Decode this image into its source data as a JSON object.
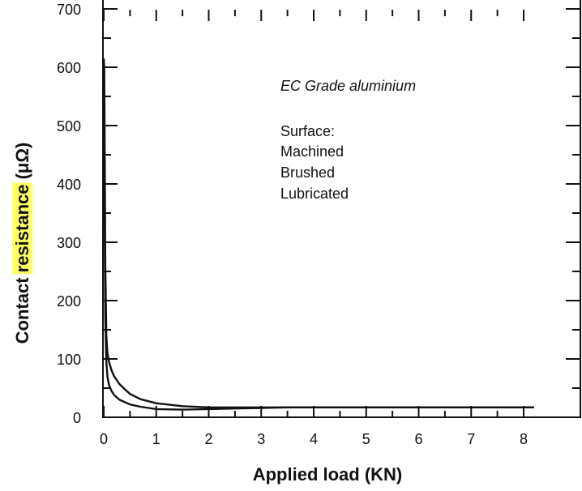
{
  "chart_data": {
    "type": "line",
    "title": "",
    "xlabel": "Applied load (KN)",
    "ylabel_prefix": "Contact ",
    "ylabel_highlight": "resistance",
    "ylabel_suffix": " (μΩ)",
    "highlight_color": "#ffff66",
    "xlim": [
      0,
      8.8
    ],
    "ylim": [
      0,
      700
    ],
    "x_ticks": [
      "0",
      "1",
      "2",
      "3",
      "4",
      "5",
      "6",
      "7",
      "8"
    ],
    "y_ticks": [
      "0",
      "100",
      "200",
      "300",
      "400",
      "500",
      "600",
      "700"
    ],
    "annotation": {
      "heading": "EC Grade aluminium",
      "lines": [
        "Surface:",
        "Machined",
        "Brushed",
        "Lubricated"
      ]
    },
    "series": [
      {
        "x": [
          0.0,
          0.01,
          0.02,
          0.03,
          0.05,
          0.07,
          0.1,
          0.15,
          0.2,
          0.3,
          0.4,
          0.5,
          0.7,
          1.0,
          1.5,
          2.0,
          2.5,
          3.0,
          4.0,
          5.0,
          6.0,
          7.0,
          8.2
        ],
        "values": [
          615,
          600,
          430,
          260,
          140,
          110,
          95,
          80,
          70,
          57,
          48,
          40,
          31,
          24,
          19,
          17,
          17,
          17,
          17,
          17,
          17,
          17,
          17
        ]
      },
      {
        "x": [
          0.0,
          0.01,
          0.02,
          0.03,
          0.05,
          0.07,
          0.1,
          0.15,
          0.2,
          0.3,
          0.5,
          0.7,
          1.0,
          1.5,
          2.0,
          2.5,
          3.0,
          3.5,
          4.0,
          5.0,
          6.0,
          7.0,
          8.2
        ],
        "values": [
          560,
          500,
          300,
          170,
          95,
          70,
          55,
          45,
          38,
          30,
          22,
          18,
          14,
          13,
          14,
          15,
          16,
          17,
          17,
          17,
          17,
          17,
          17
        ]
      }
    ],
    "line_color": "#111111"
  }
}
